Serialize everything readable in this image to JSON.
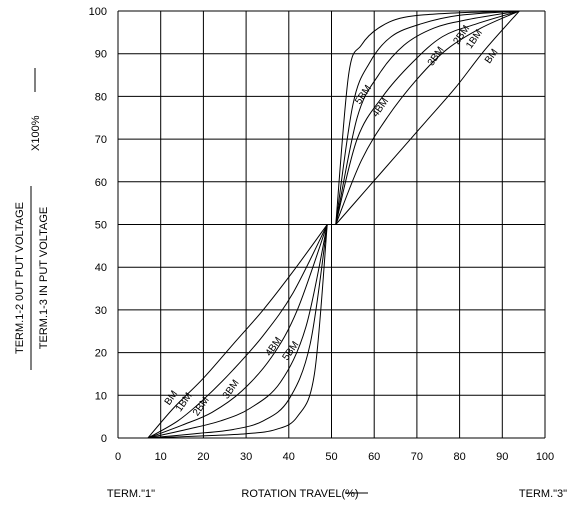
{
  "chart_data": {
    "type": "line",
    "xlabel": "ROTATION TRAVEL(%)",
    "ylabel_numerator": "TERM.1-2 0UT PUT VOLTAGE",
    "ylabel_denominator": "TERM.1-3 IN PUT VOLTAGE",
    "ylabel_factor": "X100%",
    "left_terminal_label": "TERM.\"1\"",
    "right_terminal_label": "TERM.\"3\"",
    "xlim": [
      0,
      100
    ],
    "ylim": [
      0,
      100
    ],
    "x_ticks": [
      0,
      10,
      20,
      30,
      40,
      50,
      60,
      70,
      80,
      90,
      100
    ],
    "y_ticks": [
      0,
      10,
      20,
      30,
      40,
      50,
      60,
      70,
      80,
      90,
      100
    ],
    "grid": true,
    "series": [
      {
        "name": "BM",
        "points": [
          [
            7,
            0
          ],
          [
            49,
            50
          ],
          [
            51,
            50
          ],
          [
            94,
            100
          ]
        ],
        "segments": [
          [
            [
              7,
              0
            ],
            [
              13,
              7
            ],
            [
              20,
              14
            ],
            [
              27,
              22
            ],
            [
              34,
              30
            ],
            [
              41,
              39
            ],
            [
              49,
              50
            ]
          ],
          [
            [
              51,
              50
            ],
            [
              58,
              58
            ],
            [
              65,
              66
            ],
            [
              72,
              74
            ],
            [
              79,
              82
            ],
            [
              86,
              91
            ],
            [
              94,
              100
            ]
          ]
        ],
        "label_pos": [
          [
            13,
            9
          ],
          [
            88,
            89
          ]
        ]
      },
      {
        "name": "1BM",
        "segments": [
          [
            [
              7,
              0
            ],
            [
              14,
              4
            ],
            [
              20,
              9
            ],
            [
              27,
              16
            ],
            [
              34,
              24
            ],
            [
              41,
              34
            ],
            [
              49,
              50
            ]
          ],
          [
            [
              51,
              50
            ],
            [
              57,
              65
            ],
            [
              63,
              75
            ],
            [
              70,
              84
            ],
            [
              77,
              91
            ],
            [
              85,
              96
            ],
            [
              94,
              100
            ]
          ]
        ],
        "label_pos": [
          [
            16,
            8
          ],
          [
            84,
            93
          ]
        ]
      },
      {
        "name": "2BM",
        "segments": [
          [
            [
              7,
              0
            ],
            [
              15,
              3
            ],
            [
              22,
              6
            ],
            [
              29,
              11
            ],
            [
              36,
              19
            ],
            [
              42,
              30
            ],
            [
              49,
              50
            ]
          ],
          [
            [
              51,
              50
            ],
            [
              56,
              70
            ],
            [
              62,
              80
            ],
            [
              69,
              88
            ],
            [
              76,
              94
            ],
            [
              84,
              97
            ],
            [
              94,
              100
            ]
          ]
        ],
        "label_pos": [
          [
            20,
            7
          ],
          [
            81,
            94
          ]
        ]
      },
      {
        "name": "3BM",
        "segments": [
          [
            [
              7,
              0
            ],
            [
              16,
              2
            ],
            [
              24,
              4
            ],
            [
              31,
              7
            ],
            [
              38,
              13
            ],
            [
              44,
              26
            ],
            [
              49,
              50
            ]
          ],
          [
            [
              51,
              50
            ],
            [
              56,
              75
            ],
            [
              61,
              85
            ],
            [
              67,
              92
            ],
            [
              74,
              96
            ],
            [
              82,
              98
            ],
            [
              94,
              100
            ]
          ]
        ],
        "label_pos": [
          [
            27,
            11
          ],
          [
            75,
            89
          ]
        ]
      },
      {
        "name": "4BM",
        "segments": [
          [
            [
              7,
              0
            ],
            [
              18,
              1
            ],
            [
              27,
              2
            ],
            [
              34,
              4
            ],
            [
              40,
              9
            ],
            [
              45,
              22
            ],
            [
              49,
              50
            ]
          ],
          [
            [
              51,
              50
            ],
            [
              55,
              78
            ],
            [
              59,
              88
            ],
            [
              64,
              94
            ],
            [
              71,
              97
            ],
            [
              80,
              99
            ],
            [
              94,
              100
            ]
          ]
        ],
        "label_pos": [
          [
            37,
            21
          ],
          [
            62,
            77
          ]
        ]
      },
      {
        "name": "5BM",
        "segments": [
          [
            [
              7,
              0
            ],
            [
              20,
              0.5
            ],
            [
              30,
              1
            ],
            [
              37,
              2
            ],
            [
              42,
              5
            ],
            [
              46,
              15
            ],
            [
              49,
              50
            ]
          ],
          [
            [
              51,
              50
            ],
            [
              54,
              85
            ],
            [
              57,
              92
            ],
            [
              61,
              96
            ],
            [
              67,
              98.5
            ],
            [
              78,
              99.5
            ],
            [
              94,
              100
            ]
          ]
        ],
        "label_pos": [
          [
            41,
            20
          ],
          [
            58,
            80
          ]
        ]
      }
    ]
  }
}
